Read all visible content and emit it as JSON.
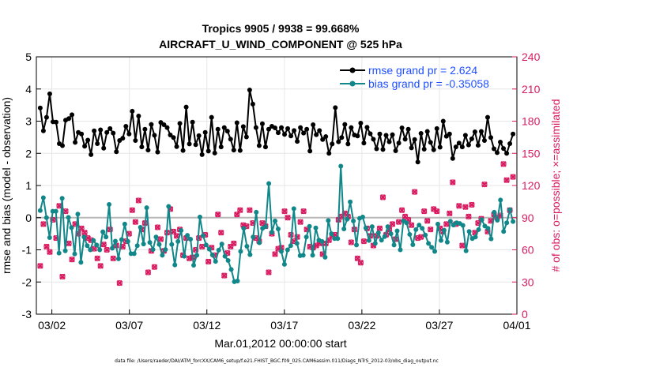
{
  "chart_data": {
    "type": "line",
    "title": "Tropics 9905 / 9938 = 99.668%",
    "subtitle": "AIRCRAFT_U_WIND_COMPONENT @ 525 hPa",
    "xlabel": "Mar.01,2012 00:00:00 start",
    "ylabel_left": "rmse and bias (model - observation)",
    "ylabel_right": "# of obs: o=possible; ×=assimilated",
    "x_range_days": [
      0,
      31
    ],
    "x_ticks": [
      {
        "day": 1,
        "label": "03/02"
      },
      {
        "day": 6,
        "label": "03/07"
      },
      {
        "day": 11,
        "label": "03/12"
      },
      {
        "day": 16,
        "label": "03/17"
      },
      {
        "day": 21,
        "label": "03/22"
      },
      {
        "day": 26,
        "label": "03/27"
      },
      {
        "day": 31,
        "label": "04/01"
      }
    ],
    "ylim_left": [
      -3,
      5
    ],
    "y_ticks_left": [
      "-3",
      "-2",
      "-1",
      "0",
      "1",
      "2",
      "3",
      "4",
      "5"
    ],
    "ylim_right": [
      0,
      240
    ],
    "y_ticks_right": [
      "0",
      "30",
      "60",
      "90",
      "120",
      "150",
      "180",
      "210",
      "240"
    ],
    "reference_line_y": 0,
    "legend": {
      "position": "top-right",
      "entries": [
        "rmse grand pr = 2.624",
        "bias grand pr = -0.35058"
      ]
    },
    "footer": "data file: /Users/raeder/DAI/ATM_forcXX/CAM6_setup/f.e21.FHIST_BGC.f09_025.CAM6assim.011/Diags_NTrS_2012-03/obs_diag_output.nc",
    "series": [
      {
        "name": "rmse",
        "color": "#000000",
        "values": [
          3.41,
          2.7,
          3.12,
          3.85,
          2.98,
          2.97,
          2.3,
          2.24,
          3.03,
          3.08,
          3.2,
          2.34,
          2.65,
          2.6,
          2.22,
          2.41,
          1.96,
          2.7,
          2.3,
          2.73,
          2.16,
          2.65,
          2.77,
          2.63,
          2.05,
          2.4,
          2.47,
          2.84,
          2.6,
          3.31,
          2.4,
          3.16,
          2.2,
          2.75,
          2.1,
          2.9,
          2.56,
          2.04,
          2.96,
          2.89,
          2.8,
          2.57,
          2.49,
          2.21,
          2.93,
          2.09,
          3.44,
          2.29,
          2.97,
          2.27,
          2.55,
          1.96,
          2.65,
          2.07,
          3.12,
          2.01,
          2.75,
          2.2,
          2.8,
          2.69,
          2.44,
          2.1,
          2.95,
          2.09,
          2.83,
          2.51,
          3.97,
          3.53,
          2.8,
          2.24,
          2.92,
          2.2,
          2.75,
          2.84,
          2.79,
          2.64,
          2.8,
          2.59,
          2.77,
          2.54,
          2.71,
          2.37,
          2.8,
          2.63,
          2.75,
          2.07,
          2.89,
          2.58,
          2.71,
          2.43,
          2.52,
          2.0,
          2.29,
          3.42,
          2.36,
          2.49,
          2.9,
          2.29,
          2.8,
          2.57,
          2.54,
          2.94,
          2.32,
          2.81,
          2.61,
          2.44,
          2.14,
          2.6,
          2.12,
          2.56,
          2.36,
          2.58,
          2.08,
          2.32,
          2.79,
          2.44,
          2.75,
          2.17,
          2.43,
          1.73,
          2.62,
          2.13,
          2.68,
          2.34,
          2.11,
          2.77,
          2.19,
          3.0,
          2.53,
          2.6,
          1.84,
          2.2,
          2.32,
          2.2,
          2.56,
          2.26,
          2.45,
          2.67,
          2.25,
          2.68,
          2.4,
          3.12,
          2.49,
          2.14,
          2.02,
          2.35,
          2.15,
          2.0,
          2.3,
          2.6
        ]
      },
      {
        "name": "bias",
        "color": "#11878a",
        "values": [
          0.22,
          0.62,
          0.0,
          -0.62,
          0.2,
          0.2,
          -1.1,
          0.6,
          -1.03,
          0.01,
          -0.31,
          -1.13,
          0.11,
          -1.39,
          -0.6,
          -0.87,
          -1.0,
          -0.71,
          -0.85,
          -1.0,
          -0.44,
          -0.6,
          0.41,
          -0.95,
          -0.73,
          -1.28,
          -0.68,
          -0.2,
          -0.74,
          -1.12,
          -1.12,
          -0.87,
          -0.3,
          -0.82,
          0.31,
          -0.77,
          -0.99,
          -0.6,
          -0.83,
          -1.17,
          -0.99,
          0.35,
          -0.83,
          -1.47,
          -0.74,
          -0.4,
          -1.2,
          -0.55,
          -0.67,
          -1.48,
          -1.17,
          0.02,
          -0.56,
          -0.85,
          -0.98,
          -1.16,
          -1.36,
          -1.01,
          -0.82,
          -1.2,
          -1.33,
          -1.61,
          -1.99,
          -1.97,
          -1.05,
          -0.33,
          -0.89,
          -1.15,
          -0.6,
          0.17,
          -0.78,
          -0.33,
          -0.28,
          1.06,
          -0.45,
          -0.1,
          -0.35,
          -1.05,
          -1.45,
          -1.0,
          -0.87,
          0.28,
          -0.8,
          -1.18,
          -1.17,
          -0.6,
          -0.27,
          -1.17,
          -0.32,
          -0.7,
          -0.74,
          -1.23,
          -0.09,
          -0.5,
          -0.65,
          -0.65,
          1.6,
          -0.35,
          -0.05,
          0.49,
          -0.1,
          -0.85,
          -0.02,
          0.02,
          -0.32,
          -0.71,
          -0.28,
          -0.8,
          -0.47,
          -0.7,
          -0.59,
          -0.28,
          -0.5,
          -0.85,
          -0.41,
          -1.0,
          -0.1,
          -0.16,
          -0.52,
          -0.84,
          -0.37,
          -0.23,
          -0.33,
          -0.54,
          -0.8,
          -0.92,
          -1.05,
          -0.2,
          -0.71,
          -0.39,
          -0.76,
          -0.11,
          -0.23,
          -0.16,
          -0.18,
          -0.24,
          -1.03,
          -0.43,
          -0.65,
          -0.6,
          -0.37,
          -0.06,
          -0.26,
          -0.33,
          -0.66,
          0.17,
          -0.08,
          0.55,
          -0.43,
          -0.16,
          0.25,
          -0.12
        ]
      },
      {
        "name": "obs assimilated",
        "axis": "right",
        "color": "#d81b60",
        "values": [
          45,
          84,
          63,
          58,
          88,
          71,
          101,
          35,
          96,
          66,
          51,
          84,
          75,
          80,
          76,
          71,
          69,
          61,
          52,
          45,
          65,
          60,
          79,
          52,
          64,
          29,
          63,
          68,
          75,
          97,
          86,
          106,
          79,
          85,
          39,
          59,
          44,
          81,
          70,
          59,
          76,
          98,
          77,
          73,
          79,
          55,
          71,
          52,
          53,
          60,
          71,
          63,
          74,
          49,
          62,
          55,
          93,
          76,
          36,
          57,
          63,
          66,
          93,
          97,
          83,
          82,
          97,
          85,
          71,
          68,
          85,
          82,
          39,
          75,
          56,
          61,
          62,
          96,
          90,
          74,
          68,
          72,
          86,
          96,
          79,
          63,
          62,
          64,
          66,
          56,
          66,
          69,
          73,
          74,
          88,
          91,
          94,
          91,
          67,
          79,
          52,
          48,
          68,
          80,
          73,
          64,
          73,
          80,
          109,
          74,
          79,
          84,
          70,
          86,
          97,
          91,
          88,
          83,
          114,
          71,
          72,
          96,
          87,
          79,
          98,
          96,
          80,
          77,
          84,
          94,
          123,
          84,
          101,
          64,
          100,
          91,
          102,
          76,
          85,
          89,
          121,
          77,
          87,
          93,
          90,
          92,
          140,
          125,
          97,
          128
        ]
      },
      {
        "name": "obs possible",
        "axis": "right",
        "color": "#d81b60",
        "values": [
          45,
          84,
          63,
          58,
          88,
          71,
          101,
          35,
          96,
          66,
          51,
          84,
          75,
          80,
          76,
          71,
          69,
          61,
          52,
          45,
          65,
          60,
          79,
          52,
          64,
          29,
          63,
          68,
          75,
          97,
          86,
          106,
          79,
          85,
          39,
          59,
          44,
          81,
          70,
          59,
          76,
          98,
          77,
          73,
          79,
          55,
          71,
          52,
          53,
          60,
          71,
          63,
          74,
          49,
          62,
          55,
          93,
          76,
          36,
          57,
          63,
          66,
          93,
          97,
          83,
          82,
          97,
          85,
          71,
          68,
          85,
          82,
          39,
          75,
          56,
          61,
          62,
          96,
          90,
          74,
          68,
          72,
          86,
          96,
          79,
          63,
          62,
          64,
          66,
          56,
          66,
          69,
          73,
          74,
          88,
          91,
          94,
          91,
          67,
          79,
          52,
          48,
          68,
          80,
          73,
          64,
          73,
          80,
          109,
          74,
          79,
          84,
          70,
          86,
          97,
          91,
          88,
          83,
          114,
          71,
          72,
          96,
          87,
          79,
          98,
          96,
          80,
          77,
          84,
          94,
          123,
          84,
          101,
          64,
          100,
          91,
          102,
          76,
          85,
          89,
          121,
          77,
          87,
          93,
          90,
          92,
          140,
          125,
          97,
          128
        ]
      }
    ]
  }
}
